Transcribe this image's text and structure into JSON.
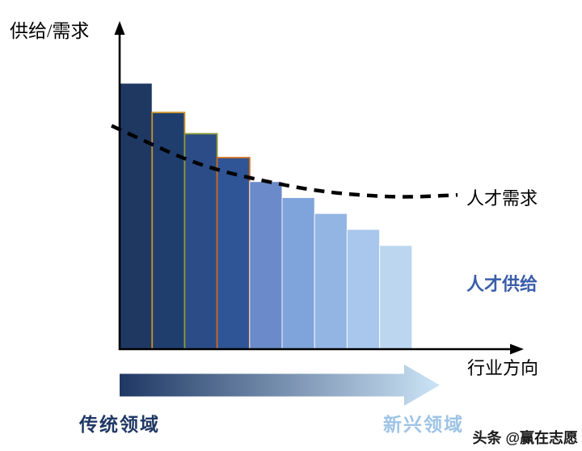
{
  "labels": {
    "y_axis": "供给/需求",
    "x_axis": "行业方向",
    "demand_line": "人才需求",
    "supply_bars": "人才供给",
    "left_region": "传统领域",
    "right_region": "新兴领域",
    "watermark": "头条 @赢在志愿"
  },
  "colors": {
    "axis": "#000000",
    "demand_line": "#000000",
    "supply_label": "#3B5EA8",
    "left_region_label": "#1F3864",
    "right_region_label": "#9DC3E6",
    "arrow_gradient_start": "#1F3864",
    "arrow_gradient_end": "#CCE4F6"
  },
  "chart_data": {
    "type": "bar",
    "title": "",
    "xlabel": "行业方向",
    "ylabel": "供给/需求",
    "categories": [
      "",
      "",
      "",
      "",
      "",
      "",
      "",
      "",
      ""
    ],
    "ylim": [
      0,
      105
    ],
    "grid": false,
    "legend": "inline-annotations",
    "series": [
      {
        "name": "人才供给",
        "type": "bar",
        "values": [
          100,
          89,
          81,
          72,
          63,
          57,
          51,
          45,
          39
        ],
        "fills": [
          "#1E3862",
          "#1F3E6E",
          "#2B4C86",
          "#2F5597",
          "#6B8AC9",
          "#7FA4DB",
          "#93B5E3",
          "#A9C7EC",
          "#BCD6F0"
        ],
        "strokes": [
          "",
          "#C9922B",
          "#8E9A3A",
          "#C96A1E",
          "",
          "",
          "",
          "",
          ""
        ]
      },
      {
        "name": "人才需求",
        "type": "line",
        "dashed": true,
        "color": "#000000",
        "points": [
          {
            "x": 0.0,
            "v": 84.0
          },
          {
            "x": 0.1,
            "v": 78.0
          },
          {
            "x": 0.22,
            "v": 71.0
          },
          {
            "x": 0.33,
            "v": 66.5
          },
          {
            "x": 0.45,
            "v": 63.0
          },
          {
            "x": 0.57,
            "v": 60.0
          },
          {
            "x": 0.68,
            "v": 58.3
          },
          {
            "x": 0.8,
            "v": 57.3
          },
          {
            "x": 0.89,
            "v": 57.3
          },
          {
            "x": 1.0,
            "v": 58.0
          }
        ]
      }
    ],
    "annotations": [
      "人才需求",
      "人才供给",
      "传统领域",
      "新兴领域"
    ]
  }
}
